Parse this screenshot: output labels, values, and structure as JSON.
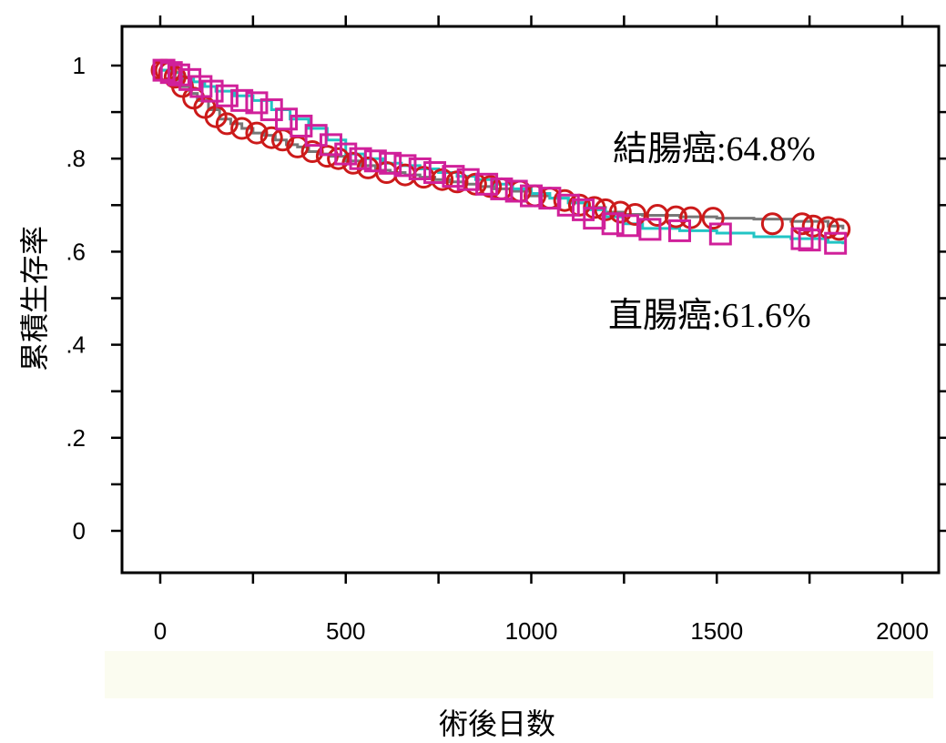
{
  "chart_data": {
    "type": "line",
    "title": "",
    "xlabel": "術後日数",
    "ylabel": "累積生存率",
    "xlim": [
      0,
      2000
    ],
    "ylim": [
      0,
      1
    ],
    "xticks": [
      0,
      250,
      500,
      750,
      1000,
      1250,
      1500,
      1750,
      2000
    ],
    "xtick_labels": [
      "0",
      "500",
      "1000",
      "1500",
      "2000"
    ],
    "xtick_label_values": [
      0,
      500,
      1000,
      1500,
      2000
    ],
    "yticks": [
      0,
      0.1,
      0.2,
      0.3,
      0.4,
      0.5,
      0.6,
      0.7,
      0.8,
      0.9,
      1.0
    ],
    "ytick_labels": [
      "0",
      ".2",
      ".4",
      ".6",
      ".8",
      "1"
    ],
    "ytick_label_values": [
      0,
      0.2,
      0.4,
      0.6,
      0.8,
      1.0
    ],
    "grid": false,
    "annotations": [
      {
        "text": "結腸癌:64.8%",
        "x": 1220,
        "y": 0.82
      },
      {
        "text": "直腸癌:61.6%",
        "x": 1220,
        "y": 0.465
      }
    ],
    "series": [
      {
        "line_color": "#777777",
        "marker": "circle",
        "marker_color": "#cc1a1a",
        "x": [
          0,
          20,
          40,
          60,
          80,
          100,
          130,
          160,
          190,
          220,
          250,
          280,
          310,
          340,
          370,
          400,
          430,
          460,
          500,
          540,
          580,
          620,
          660,
          700,
          740,
          780,
          820,
          860,
          900,
          950,
          1000,
          1050,
          1100,
          1150,
          1200,
          1250,
          1300,
          1400,
          1500,
          1600,
          1700,
          1800,
          1840
        ],
        "y": [
          0.99,
          0.985,
          0.97,
          0.955,
          0.94,
          0.925,
          0.905,
          0.885,
          0.875,
          0.865,
          0.855,
          0.85,
          0.84,
          0.83,
          0.825,
          0.815,
          0.81,
          0.805,
          0.795,
          0.785,
          0.775,
          0.77,
          0.765,
          0.76,
          0.755,
          0.75,
          0.745,
          0.74,
          0.735,
          0.73,
          0.72,
          0.715,
          0.705,
          0.695,
          0.685,
          0.68,
          0.678,
          0.675,
          0.672,
          0.67,
          0.665,
          0.655,
          0.648
        ],
        "censor_x": [
          5,
          15,
          25,
          40,
          60,
          90,
          120,
          150,
          180,
          220,
          260,
          300,
          330,
          370,
          410,
          450,
          480,
          520,
          560,
          610,
          660,
          710,
          760,
          800,
          850,
          890,
          920,
          970,
          1010,
          1050,
          1090,
          1130,
          1170,
          1200,
          1240,
          1280,
          1340,
          1390,
          1430,
          1490,
          1650,
          1730,
          1760,
          1800,
          1830
        ],
        "censor_y": [
          0.99,
          0.99,
          0.985,
          0.975,
          0.955,
          0.93,
          0.91,
          0.89,
          0.875,
          0.865,
          0.855,
          0.845,
          0.84,
          0.825,
          0.815,
          0.805,
          0.8,
          0.79,
          0.78,
          0.77,
          0.765,
          0.76,
          0.755,
          0.75,
          0.745,
          0.74,
          0.735,
          0.73,
          0.72,
          0.715,
          0.71,
          0.7,
          0.695,
          0.69,
          0.685,
          0.68,
          0.678,
          0.675,
          0.673,
          0.672,
          0.66,
          0.66,
          0.655,
          0.652,
          0.648
        ]
      },
      {
        "line_color": "#22c4c4",
        "marker": "square",
        "marker_color": "#d0209a",
        "x": [
          0,
          30,
          60,
          90,
          120,
          150,
          200,
          250,
          300,
          350,
          400,
          450,
          500,
          550,
          600,
          650,
          700,
          750,
          800,
          850,
          900,
          950,
          1000,
          1050,
          1100,
          1150,
          1200,
          1250,
          1300,
          1400,
          1500,
          1600,
          1700,
          1800,
          1840
        ],
        "y": [
          0.99,
          0.985,
          0.975,
          0.965,
          0.955,
          0.945,
          0.935,
          0.925,
          0.905,
          0.885,
          0.865,
          0.84,
          0.81,
          0.8,
          0.79,
          0.785,
          0.778,
          0.77,
          0.762,
          0.755,
          0.745,
          0.735,
          0.725,
          0.715,
          0.705,
          0.69,
          0.675,
          0.66,
          0.65,
          0.645,
          0.64,
          0.632,
          0.628,
          0.62,
          0.616
        ],
        "censor_x": [
          10,
          30,
          50,
          80,
          110,
          140,
          180,
          220,
          260,
          300,
          340,
          380,
          420,
          460,
          500,
          540,
          580,
          620,
          660,
          700,
          740,
          790,
          830,
          880,
          920,
          960,
          1000,
          1050,
          1100,
          1140,
          1170,
          1220,
          1260,
          1320,
          1400,
          1510,
          1730,
          1750,
          1820
        ],
        "censor_y": [
          0.99,
          0.985,
          0.98,
          0.97,
          0.955,
          0.945,
          0.935,
          0.925,
          0.92,
          0.905,
          0.885,
          0.87,
          0.85,
          0.83,
          0.81,
          0.8,
          0.795,
          0.79,
          0.785,
          0.778,
          0.77,
          0.762,
          0.755,
          0.745,
          0.735,
          0.73,
          0.72,
          0.715,
          0.7,
          0.69,
          0.672,
          0.66,
          0.656,
          0.648,
          0.645,
          0.638,
          0.628,
          0.625,
          0.618
        ]
      }
    ]
  }
}
